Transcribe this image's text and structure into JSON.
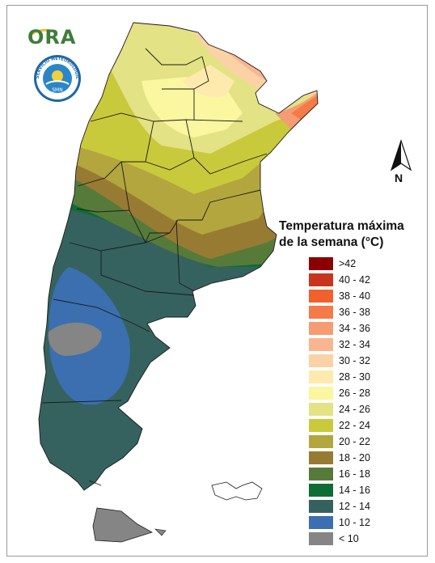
{
  "logos": {
    "ora_text": "ORA",
    "smn_text": "SERVICIO METEOROLOGICO NACIONAL ARGENTINA",
    "smn_center": "SMN"
  },
  "north_arrow": {
    "label": "N"
  },
  "legend": {
    "title_line1": "Temperatura máxima",
    "title_line2": "de la semana (°C)",
    "items": [
      {
        "label": ">42",
        "color": "#8b0000"
      },
      {
        "label": "40 - 42",
        "color": "#c8351c"
      },
      {
        "label": "38 - 40",
        "color": "#f1612d"
      },
      {
        "label": "36 - 38",
        "color": "#f47b48"
      },
      {
        "label": "34 - 36",
        "color": "#f59c72"
      },
      {
        "label": "32 - 34",
        "color": "#f8b690"
      },
      {
        "label": "30 - 32",
        "color": "#fbd2a6"
      },
      {
        "label": "28 - 30",
        "color": "#feeaad"
      },
      {
        "label": "26 - 28",
        "color": "#fbf6a0"
      },
      {
        "label": "24 - 26",
        "color": "#e3e284"
      },
      {
        "label": "22 - 24",
        "color": "#c9c93c"
      },
      {
        "label": "20 - 22",
        "color": "#b3a63e"
      },
      {
        "label": "18 - 20",
        "color": "#977b33"
      },
      {
        "label": "16 - 18",
        "color": "#567a3a"
      },
      {
        "label": "14 - 16",
        "color": "#0c6e34"
      },
      {
        "label": "12 - 14",
        "color": "#35625f"
      },
      {
        "label": "10 - 12",
        "color": "#3b6fb0"
      },
      {
        "label": "< 10",
        "color": "#858585"
      }
    ]
  }
}
